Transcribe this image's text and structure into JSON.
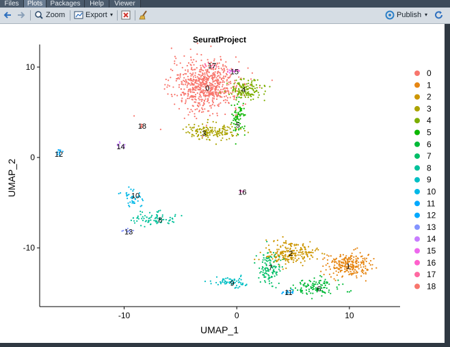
{
  "tabs": [
    {
      "label": "Files"
    },
    {
      "label": "Plots"
    },
    {
      "label": "Packages"
    },
    {
      "label": "Help"
    },
    {
      "label": "Viewer"
    }
  ],
  "toolbar": {
    "zoom_label": "Zoom",
    "export_label": "Export",
    "publish_label": "Publish"
  },
  "chart_data": {
    "type": "scatter",
    "title": "SeuratProject",
    "xlabel": "UMAP_1",
    "ylabel": "UMAP_2",
    "xlim": [
      -17.5,
      14.5
    ],
    "ylim": [
      -16.5,
      12.5
    ],
    "xticks": [
      -10,
      0,
      10
    ],
    "yticks": [
      -10,
      0,
      10
    ],
    "grid": false,
    "legend_position": "right",
    "clusters": [
      {
        "name": "0",
        "color": "#F8766D",
        "x": -2.7,
        "y": 8.0,
        "sx": 1.5,
        "sy": 1.4,
        "n": 700
      },
      {
        "name": "1",
        "color": "#E68613",
        "x": 9.9,
        "y": -11.9,
        "sx": 1.0,
        "sy": 0.65,
        "n": 240
      },
      {
        "name": "2",
        "color": "#CD9600",
        "x": 4.8,
        "y": -10.6,
        "sx": 1.1,
        "sy": 0.6,
        "n": 220
      },
      {
        "name": "3",
        "color": "#ABA300",
        "x": -2.2,
        "y": 2.9,
        "sx": 1.1,
        "sy": 0.45,
        "n": 160
      },
      {
        "name": "4",
        "color": "#7CAE00",
        "x": 0.8,
        "y": 7.5,
        "sx": 0.9,
        "sy": 0.55,
        "n": 140
      },
      {
        "name": "5",
        "color": "#0CB702",
        "x": 0.2,
        "y": 4.5,
        "sx": 0.35,
        "sy": 1.0,
        "n": 70
      },
      {
        "name": "6",
        "color": "#00BA38",
        "x": 7.2,
        "y": -14.3,
        "sx": 1.0,
        "sy": 0.45,
        "n": 110
      },
      {
        "name": "7",
        "color": "#00BE67",
        "x": 2.9,
        "y": -12.3,
        "sx": 0.5,
        "sy": 0.9,
        "n": 110
      },
      {
        "name": "8",
        "color": "#00C19A",
        "x": -7.2,
        "y": -6.8,
        "sx": 1.0,
        "sy": 0.35,
        "n": 80
      },
      {
        "name": "9",
        "color": "#00BFC4",
        "x": -0.6,
        "y": -13.8,
        "sx": 0.8,
        "sy": 0.3,
        "n": 60
      },
      {
        "name": "10",
        "color": "#00B8E7",
        "x": -9.2,
        "y": -4.4,
        "sx": 0.4,
        "sy": 0.5,
        "n": 40
      },
      {
        "name": "11",
        "color": "#00A9FF",
        "x": 4.6,
        "y": -14.9,
        "sx": 0.35,
        "sy": 0.15,
        "n": 18
      },
      {
        "name": "12",
        "color": "#00A9FF",
        "x": -15.8,
        "y": 0.6,
        "sx": 0.2,
        "sy": 0.2,
        "n": 12
      },
      {
        "name": "13",
        "color": "#8494FF",
        "x": -9.6,
        "y": -8.1,
        "sx": 0.3,
        "sy": 0.15,
        "n": 10
      },
      {
        "name": "14",
        "color": "#C77CFF",
        "x": -10.3,
        "y": 1.3,
        "sx": 0.25,
        "sy": 0.2,
        "n": 10
      },
      {
        "name": "15",
        "color": "#ED68ED",
        "x": -0.3,
        "y": 9.5,
        "sx": 0.35,
        "sy": 0.15,
        "n": 14
      },
      {
        "name": "16",
        "color": "#FF61CC",
        "x": 0.4,
        "y": -3.8,
        "sx": 0.15,
        "sy": 0.15,
        "n": 6
      },
      {
        "name": "17",
        "color": "#FF68A1",
        "x": -2.2,
        "y": 10.2,
        "sx": 0.3,
        "sy": 0.12,
        "n": 10
      },
      {
        "name": "18",
        "color": "#F8766D",
        "x": -8.5,
        "y": 3.5,
        "sx": 0.15,
        "sy": 0.15,
        "n": 6
      }
    ],
    "label_positions": [
      {
        "name": "0",
        "x": -2.6,
        "y": 7.7
      },
      {
        "name": "1",
        "x": 9.9,
        "y": -12.0
      },
      {
        "name": "2",
        "x": 4.8,
        "y": -10.6
      },
      {
        "name": "3",
        "x": -2.9,
        "y": 2.7
      },
      {
        "name": "4",
        "x": 0.6,
        "y": 7.5
      },
      {
        "name": "5",
        "x": 0.1,
        "y": 3.6
      },
      {
        "name": "6",
        "x": 7.3,
        "y": -14.5
      },
      {
        "name": "7",
        "x": 3.0,
        "y": -12.2
      },
      {
        "name": "8",
        "x": -6.8,
        "y": -6.9
      },
      {
        "name": "9",
        "x": -0.4,
        "y": -13.9
      },
      {
        "name": "10",
        "x": -9.0,
        "y": -4.2
      },
      {
        "name": "11",
        "x": 4.6,
        "y": -14.9
      },
      {
        "name": "12",
        "x": -15.8,
        "y": 0.4
      },
      {
        "name": "13",
        "x": -9.6,
        "y": -8.2
      },
      {
        "name": "14",
        "x": -10.3,
        "y": 1.2
      },
      {
        "name": "15",
        "x": -0.2,
        "y": 9.5
      },
      {
        "name": "16",
        "x": 0.5,
        "y": -3.8
      },
      {
        "name": "17",
        "x": -2.2,
        "y": 10.2
      },
      {
        "name": "18",
        "x": -8.4,
        "y": 3.5
      }
    ],
    "legend": [
      "0",
      "1",
      "2",
      "3",
      "4",
      "5",
      "6",
      "7",
      "8",
      "9",
      "10",
      "11",
      "12",
      "13",
      "14",
      "15",
      "16",
      "17",
      "18"
    ]
  }
}
